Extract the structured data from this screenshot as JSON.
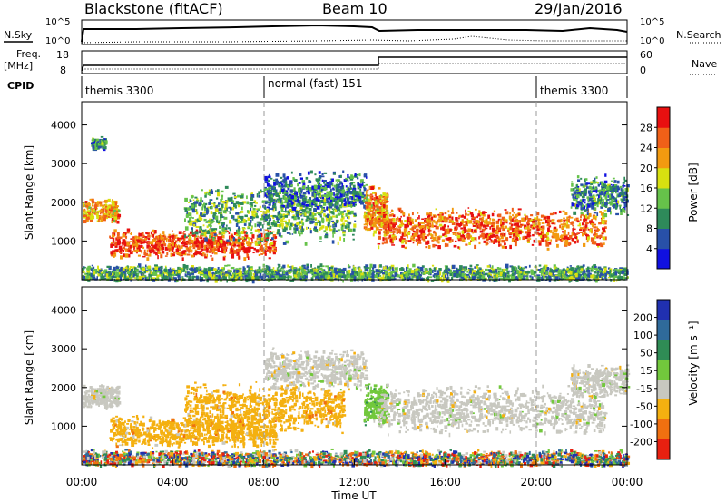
{
  "header": {
    "station": "Blackstone (fitACF)",
    "beam": "Beam 10",
    "date": "29/Jan/2016"
  },
  "strips": {
    "nsky_label": "N.Sky",
    "nsky_ticks": [
      "10^5",
      "10^0"
    ],
    "nsearch_label": "N.Search",
    "nsearch_ticks": [
      "10^5",
      "10^0"
    ],
    "freq_label": "Freq.",
    "freq_unit": "[MHz]",
    "freq_ticks": [
      "18",
      "8"
    ],
    "nave_label": "Nave",
    "nave_ticks": [
      "60",
      "0"
    ],
    "cpid_label": "CPID",
    "cpid_segments": [
      {
        "label": "themis 3300",
        "start_h": 0,
        "end_h": 8
      },
      {
        "label": "normal (fast) 151",
        "start_h": 8,
        "end_h": 20
      },
      {
        "label": "themis 3300",
        "start_h": 20,
        "end_h": 24
      }
    ]
  },
  "chart_data": [
    {
      "type": "heatmap",
      "title": "",
      "ylabel": "Slant Range [km]",
      "ylim": [
        0,
        4600
      ],
      "yticks": [
        "1000",
        "2000",
        "3000",
        "4000"
      ],
      "xlim_hours": [
        0,
        24
      ],
      "colorbar_label": "Power [dB]",
      "colorbar_ticks": [
        "4",
        "8",
        "12",
        "16",
        "20",
        "24",
        "28"
      ],
      "colorscale": [
        "#1010e0",
        "#2850a8",
        "#2e8a5a",
        "#66c24a",
        "#d8e010",
        "#f29a10",
        "#f06018",
        "#e81010"
      ],
      "scatter_bands": [
        {
          "t": [
            0.05,
            1.6
          ],
          "r_center": 1800,
          "r_width": 300,
          "value": 0.7
        },
        {
          "t": [
            0.4,
            1.0
          ],
          "r_center": 3550,
          "r_width": 150,
          "value": 0.3
        },
        {
          "t": [
            1.2,
            8.5
          ],
          "r_center": 950,
          "r_width": 350,
          "value": 0.85
        },
        {
          "t": [
            4.5,
            12.0
          ],
          "r_center": 1700,
          "r_width": 700,
          "value": 0.4
        },
        {
          "t": [
            8.0,
            12.5
          ],
          "r_center": 2300,
          "r_width": 500,
          "value": 0.25
        },
        {
          "t": [
            12.4,
            13.4
          ],
          "r_center": 1800,
          "r_width": 600,
          "value": 0.7
        },
        {
          "t": [
            13.0,
            23.0
          ],
          "r_center": 1350,
          "r_width": 500,
          "value": 0.8
        },
        {
          "t": [
            21.5,
            24.0
          ],
          "r_center": 2200,
          "r_width": 500,
          "value": 0.3
        },
        {
          "t": [
            0.0,
            24.0
          ],
          "r_center": 180,
          "r_width": 220,
          "value": 0.35
        }
      ]
    },
    {
      "type": "heatmap",
      "title": "",
      "ylabel": "Slant Range [km]",
      "ylim": [
        0,
        4600
      ],
      "yticks": [
        "1000",
        "2000",
        "3000",
        "4000"
      ],
      "xlabel": "Time UT",
      "xticks": [
        "00:00",
        "04:00",
        "08:00",
        "12:00",
        "16:00",
        "20:00",
        "00:00"
      ],
      "xlim_hours": [
        0,
        24
      ],
      "colorbar_label": "Velocity [m s⁻¹]",
      "colorbar_ticks": [
        "200",
        "100",
        "50",
        "15",
        "-15",
        "-50",
        "-100",
        "-200"
      ],
      "colorscale": [
        "#2030b0",
        "#2f6a9a",
        "#2f8c55",
        "#72c83c",
        "#c8c8c0",
        "#f4b010",
        "#f07010",
        "#e82010"
      ],
      "scatter_bands": [
        {
          "t": [
            0.05,
            1.6
          ],
          "r_center": 1800,
          "r_width": 300,
          "value": "gray"
        },
        {
          "t": [
            1.2,
            8.5
          ],
          "r_center": 900,
          "r_width": 400,
          "value": "orange"
        },
        {
          "t": [
            4.5,
            11.5
          ],
          "r_center": 1500,
          "r_width": 600,
          "value": "orange"
        },
        {
          "t": [
            8.0,
            12.5
          ],
          "r_center": 2500,
          "r_width": 500,
          "value": "gray"
        },
        {
          "t": [
            12.4,
            13.4
          ],
          "r_center": 1600,
          "r_width": 500,
          "value": "green"
        },
        {
          "t": [
            13.0,
            23.0
          ],
          "r_center": 1450,
          "r_width": 600,
          "value": "gray"
        },
        {
          "t": [
            21.5,
            24.0
          ],
          "r_center": 2200,
          "r_width": 400,
          "value": "gray"
        },
        {
          "t": [
            0.0,
            24.0
          ],
          "r_center": 180,
          "r_width": 220,
          "value": "mixed"
        }
      ]
    }
  ]
}
